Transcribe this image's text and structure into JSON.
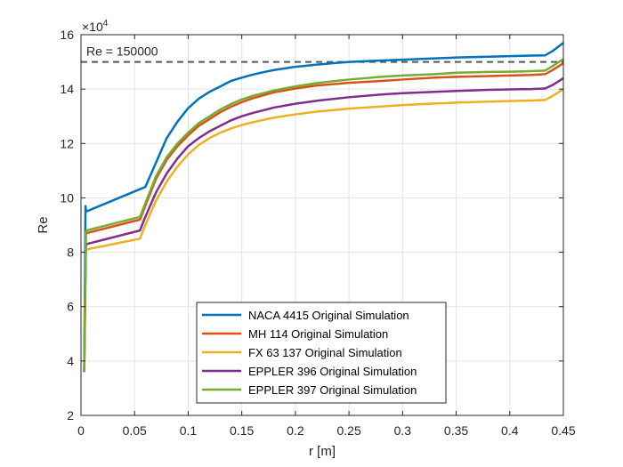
{
  "chart_data": {
    "type": "line",
    "xlabel": "r [m]",
    "ylabel": "Re",
    "exponent_label": "×10",
    "exponent_power": "4",
    "xlim": [
      0,
      0.45
    ],
    "ylim": [
      2,
      16
    ],
    "xticks": [
      0,
      0.05,
      0.1,
      0.15,
      0.2,
      0.25,
      0.3,
      0.35,
      0.4,
      0.45
    ],
    "xtick_labels": [
      "0",
      "0.05",
      "0.1",
      "0.15",
      "0.2",
      "0.25",
      "0.3",
      "0.35",
      "0.4",
      "0.45"
    ],
    "yticks": [
      2,
      4,
      6,
      8,
      10,
      12,
      14,
      16
    ],
    "ytick_labels": [
      "2",
      "4",
      "6",
      "8",
      "10",
      "12",
      "14",
      "16"
    ],
    "y_scale_factor": 10000,
    "grid": true,
    "legend_position": "lower-center",
    "reference_line": {
      "y": 15,
      "label": "Re = 150000",
      "style": "dashed",
      "color": "#595959"
    },
    "series": [
      {
        "name": "NACA 4415 Original Simulation",
        "color": "#0072BD",
        "x": [
          0.003,
          0.0042,
          0.0047,
          0.005,
          0.06,
          0.07,
          0.08,
          0.09,
          0.1,
          0.11,
          0.12,
          0.13,
          0.14,
          0.15,
          0.16,
          0.17,
          0.18,
          0.2,
          0.22,
          0.25,
          0.28,
          0.3,
          0.33,
          0.35,
          0.38,
          0.4,
          0.42,
          0.433,
          0.44,
          0.45
        ],
        "y": [
          3.6,
          9.7,
          9.5,
          9.5,
          10.4,
          11.3,
          12.2,
          12.8,
          13.3,
          13.65,
          13.9,
          14.1,
          14.3,
          14.42,
          14.53,
          14.62,
          14.7,
          14.82,
          14.9,
          15.0,
          15.05,
          15.08,
          15.13,
          15.16,
          15.19,
          15.21,
          15.23,
          15.24,
          15.4,
          15.7
        ]
      },
      {
        "name": "MH 114 Original Simulation",
        "color": "#D95319",
        "x": [
          0.003,
          0.0045,
          0.005,
          0.055,
          0.06,
          0.07,
          0.08,
          0.09,
          0.1,
          0.11,
          0.12,
          0.13,
          0.14,
          0.15,
          0.16,
          0.18,
          0.2,
          0.22,
          0.25,
          0.28,
          0.3,
          0.33,
          0.35,
          0.38,
          0.4,
          0.42,
          0.433,
          0.44,
          0.45
        ],
        "y": [
          3.6,
          8.6,
          8.7,
          9.2,
          9.7,
          10.7,
          11.4,
          11.9,
          12.3,
          12.65,
          12.9,
          13.15,
          13.35,
          13.52,
          13.66,
          13.88,
          14.02,
          14.13,
          14.23,
          14.3,
          14.35,
          14.42,
          14.45,
          14.48,
          14.5,
          14.52,
          14.55,
          14.7,
          14.95
        ]
      },
      {
        "name": "FX 63 137 Original Simulation",
        "color": "#EDB120",
        "x": [
          0.003,
          0.0045,
          0.005,
          0.055,
          0.06,
          0.07,
          0.08,
          0.09,
          0.1,
          0.11,
          0.12,
          0.13,
          0.14,
          0.15,
          0.16,
          0.18,
          0.2,
          0.22,
          0.25,
          0.28,
          0.3,
          0.33,
          0.35,
          0.38,
          0.4,
          0.42,
          0.433,
          0.44,
          0.45
        ],
        "y": [
          3.6,
          8.0,
          8.1,
          8.5,
          9.0,
          9.9,
          10.6,
          11.15,
          11.6,
          11.95,
          12.2,
          12.4,
          12.55,
          12.68,
          12.78,
          12.95,
          13.07,
          13.17,
          13.28,
          13.36,
          13.41,
          13.47,
          13.5,
          13.54,
          13.56,
          13.58,
          13.6,
          13.75,
          14.0
        ]
      },
      {
        "name": "EPPLER 396 Original Simulation",
        "color": "#7E2F8E",
        "x": [
          0.003,
          0.0045,
          0.005,
          0.055,
          0.06,
          0.07,
          0.08,
          0.09,
          0.1,
          0.11,
          0.12,
          0.13,
          0.14,
          0.15,
          0.16,
          0.18,
          0.2,
          0.22,
          0.25,
          0.28,
          0.3,
          0.33,
          0.35,
          0.38,
          0.4,
          0.42,
          0.433,
          0.44,
          0.45
        ],
        "y": [
          3.6,
          8.2,
          8.3,
          8.8,
          9.3,
          10.2,
          10.9,
          11.45,
          11.9,
          12.2,
          12.45,
          12.65,
          12.85,
          13.0,
          13.12,
          13.32,
          13.46,
          13.57,
          13.7,
          13.8,
          13.85,
          13.9,
          13.93,
          13.97,
          13.99,
          14.0,
          14.02,
          14.15,
          14.4
        ]
      },
      {
        "name": "EPPLER 397 Original Simulation",
        "color": "#77AC30",
        "x": [
          0.003,
          0.0045,
          0.005,
          0.055,
          0.06,
          0.07,
          0.08,
          0.09,
          0.1,
          0.11,
          0.12,
          0.13,
          0.14,
          0.15,
          0.16,
          0.18,
          0.2,
          0.22,
          0.25,
          0.28,
          0.3,
          0.33,
          0.35,
          0.38,
          0.4,
          0.42,
          0.433,
          0.44,
          0.45
        ],
        "y": [
          3.6,
          8.7,
          8.8,
          9.3,
          9.8,
          10.8,
          11.5,
          12.0,
          12.4,
          12.75,
          13.0,
          13.25,
          13.45,
          13.62,
          13.75,
          13.95,
          14.1,
          14.22,
          14.35,
          14.45,
          14.5,
          14.55,
          14.6,
          14.63,
          14.64,
          14.66,
          14.68,
          14.85,
          15.1
        ]
      }
    ]
  }
}
